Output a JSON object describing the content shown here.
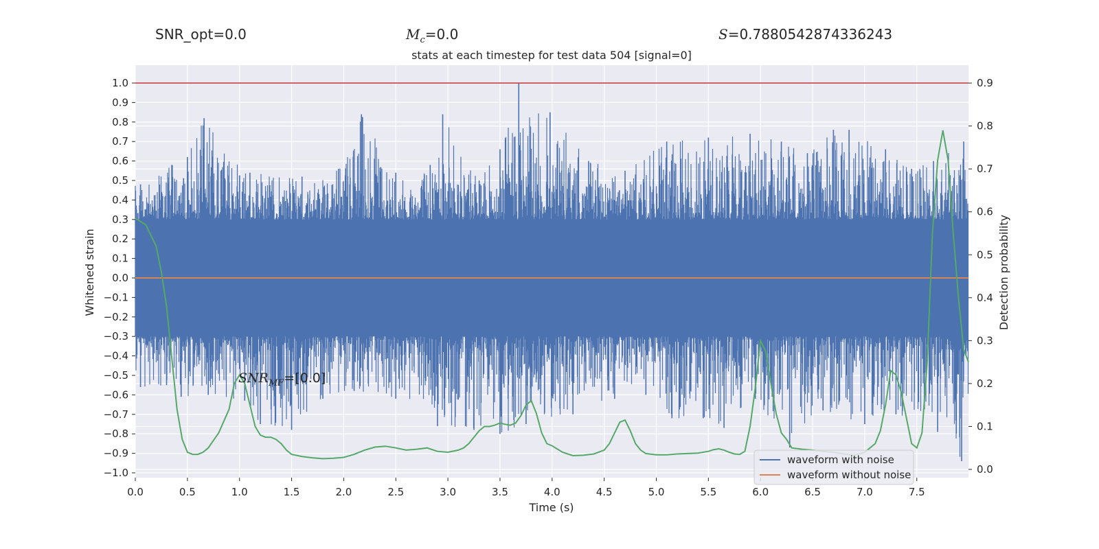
{
  "header": {
    "snr_opt": "SNR_opt=0.0",
    "mc": "M_c=0.0",
    "s_value": "S=0.7880542874336243"
  },
  "chart_data": {
    "type": "line",
    "title": "stats at each timestep for test data 504 [signal=0]",
    "xlabel": "Time (s)",
    "ylabel": "Whitened strain",
    "y2label": "Detection probability",
    "xlim": [
      0.0,
      8.0
    ],
    "ylim": [
      -1.05,
      1.08
    ],
    "y2lim": [
      -0.02,
      0.92
    ],
    "x_ticks": [
      "0.0",
      "0.5",
      "1.0",
      "1.5",
      "2.0",
      "2.5",
      "3.0",
      "3.5",
      "4.0",
      "4.5",
      "5.0",
      "5.5",
      "6.0",
      "6.5",
      "7.0",
      "7.5"
    ],
    "y_ticks": [
      "1.0",
      "0.9",
      "0.8",
      "0.7",
      "0.6",
      "0.5",
      "0.4",
      "0.3",
      "0.2",
      "0.1",
      "0.0",
      "−0.1",
      "−0.2",
      "−0.3",
      "−0.4",
      "−0.5",
      "−0.6",
      "−0.7",
      "−0.8",
      "−0.9",
      "−1.0"
    ],
    "y2_ticks": [
      "0.9",
      "0.8",
      "0.7",
      "0.6",
      "0.5",
      "0.4",
      "0.3",
      "0.2",
      "0.1",
      "0.0"
    ],
    "grid": true,
    "legend_position": "lower right",
    "annotation": "SNR_MF=[0.0]",
    "series": [
      {
        "name": "waveform with noise",
        "color": "#4c72b0",
        "description_values": "whitened noisy strain, amplitude approx within [-0.95, 1.0], peak 1.0 near t=3.68",
        "peaks_high": [
          [
            0.05,
            0.48
          ],
          [
            0.35,
            0.58
          ],
          [
            0.5,
            0.62
          ],
          [
            0.66,
            0.82
          ],
          [
            1.1,
            0.54
          ],
          [
            1.6,
            0.52
          ],
          [
            1.95,
            0.56
          ],
          [
            2.17,
            0.84
          ],
          [
            2.5,
            0.54
          ],
          [
            2.83,
            0.58
          ],
          [
            2.95,
            0.84
          ],
          [
            3.3,
            0.5
          ],
          [
            3.5,
            0.66
          ],
          [
            3.68,
            1.0
          ],
          [
            3.98,
            0.85
          ],
          [
            4.35,
            0.6
          ],
          [
            4.7,
            0.55
          ],
          [
            5.1,
            0.7
          ],
          [
            5.5,
            0.72
          ],
          [
            5.9,
            0.74
          ],
          [
            6.2,
            0.7
          ],
          [
            6.45,
            0.64
          ],
          [
            6.7,
            0.76
          ],
          [
            6.85,
            0.76
          ],
          [
            7.2,
            0.66
          ],
          [
            7.45,
            0.56
          ],
          [
            7.66,
            0.6
          ],
          [
            7.95,
            0.7
          ]
        ],
        "peaks_low": [
          [
            0.05,
            -0.56
          ],
          [
            0.3,
            -0.55
          ],
          [
            0.44,
            -0.61
          ],
          [
            0.7,
            -0.6
          ],
          [
            1.05,
            -0.63
          ],
          [
            1.2,
            -0.75
          ],
          [
            1.5,
            -0.78
          ],
          [
            1.8,
            -0.62
          ],
          [
            2.1,
            -0.58
          ],
          [
            2.5,
            -0.62
          ],
          [
            2.9,
            -0.76
          ],
          [
            3.25,
            -0.78
          ],
          [
            3.5,
            -0.8
          ],
          [
            3.75,
            -0.75
          ],
          [
            4.2,
            -0.7
          ],
          [
            4.6,
            -0.62
          ],
          [
            4.9,
            -0.6
          ],
          [
            5.15,
            -0.72
          ],
          [
            5.45,
            -0.72
          ],
          [
            5.65,
            -0.77
          ],
          [
            5.95,
            -0.62
          ],
          [
            6.28,
            -0.87
          ],
          [
            6.6,
            -0.68
          ],
          [
            7.0,
            -0.75
          ],
          [
            7.3,
            -0.7
          ],
          [
            7.7,
            -0.79
          ],
          [
            7.93,
            -0.94
          ]
        ]
      },
      {
        "name": "waveform without noise",
        "color": "#dd8452",
        "x": [
          0.0,
          8.0
        ],
        "y": [
          0.0,
          0.0
        ]
      },
      {
        "name": "",
        "axis": "right",
        "color": "#55a868",
        "x": [
          0.0,
          0.1,
          0.2,
          0.25,
          0.3,
          0.35,
          0.4,
          0.45,
          0.5,
          0.55,
          0.6,
          0.65,
          0.7,
          0.8,
          0.9,
          0.95,
          1.0,
          1.05,
          1.1,
          1.15,
          1.2,
          1.25,
          1.3,
          1.35,
          1.4,
          1.45,
          1.5,
          1.6,
          1.7,
          1.8,
          1.9,
          2.0,
          2.1,
          2.2,
          2.3,
          2.4,
          2.5,
          2.6,
          2.7,
          2.8,
          2.9,
          3.0,
          3.1,
          3.15,
          3.2,
          3.25,
          3.3,
          3.35,
          3.4,
          3.45,
          3.5,
          3.55,
          3.6,
          3.65,
          3.7,
          3.75,
          3.8,
          3.85,
          3.9,
          3.95,
          4.0,
          4.1,
          4.2,
          4.3,
          4.4,
          4.5,
          4.55,
          4.6,
          4.65,
          4.7,
          4.75,
          4.8,
          4.85,
          4.9,
          5.0,
          5.1,
          5.2,
          5.3,
          5.4,
          5.5,
          5.55,
          5.6,
          5.65,
          5.7,
          5.75,
          5.8,
          5.85,
          5.9,
          5.95,
          6.0,
          6.05,
          6.1,
          6.15,
          6.2,
          6.25,
          6.3,
          6.4,
          6.5,
          6.6,
          6.7,
          6.8,
          6.9,
          7.0,
          7.1,
          7.15,
          7.2,
          7.25,
          7.3,
          7.35,
          7.4,
          7.45,
          7.5,
          7.55,
          7.6,
          7.65,
          7.7,
          7.75,
          7.8,
          7.85,
          7.9,
          7.95,
          8.0
        ],
        "y": [
          0.585,
          0.57,
          0.52,
          0.46,
          0.38,
          0.26,
          0.14,
          0.07,
          0.04,
          0.035,
          0.035,
          0.04,
          0.05,
          0.085,
          0.14,
          0.2,
          0.22,
          0.2,
          0.15,
          0.1,
          0.08,
          0.075,
          0.075,
          0.07,
          0.06,
          0.045,
          0.035,
          0.03,
          0.027,
          0.025,
          0.026,
          0.028,
          0.035,
          0.045,
          0.052,
          0.054,
          0.05,
          0.045,
          0.047,
          0.05,
          0.042,
          0.04,
          0.045,
          0.05,
          0.06,
          0.075,
          0.09,
          0.1,
          0.1,
          0.103,
          0.108,
          0.105,
          0.103,
          0.108,
          0.125,
          0.15,
          0.16,
          0.13,
          0.085,
          0.06,
          0.055,
          0.04,
          0.032,
          0.033,
          0.036,
          0.045,
          0.06,
          0.085,
          0.11,
          0.115,
          0.09,
          0.06,
          0.045,
          0.037,
          0.034,
          0.034,
          0.036,
          0.037,
          0.038,
          0.042,
          0.046,
          0.048,
          0.045,
          0.04,
          0.036,
          0.035,
          0.042,
          0.1,
          0.19,
          0.3,
          0.275,
          0.2,
          0.13,
          0.085,
          0.07,
          0.05,
          0.047,
          0.045,
          0.042,
          0.04,
          0.036,
          0.033,
          0.04,
          0.06,
          0.09,
          0.15,
          0.23,
          0.22,
          0.18,
          0.12,
          0.06,
          0.05,
          0.085,
          0.25,
          0.55,
          0.72,
          0.79,
          0.72,
          0.55,
          0.4,
          0.28,
          0.25
        ]
      }
    ],
    "hlines": [
      {
        "axis": "left",
        "y": 1.0,
        "color": "#c44e52"
      },
      {
        "axis": "left",
        "y": 0.0,
        "color": "#dd8452"
      }
    ]
  }
}
